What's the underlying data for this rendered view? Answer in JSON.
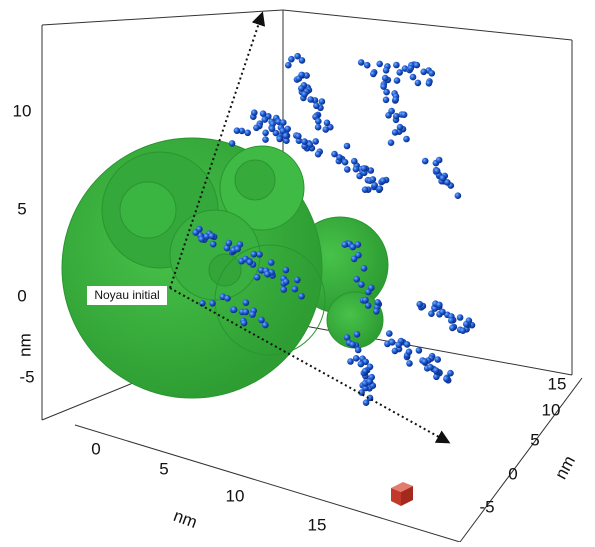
{
  "axes": {
    "z": {
      "ticks": [
        10,
        5,
        0,
        -5
      ],
      "label": "nm"
    },
    "x": {
      "ticks": [
        0,
        5,
        10,
        15
      ],
      "label": "nm"
    },
    "y": {
      "ticks": [
        15,
        10,
        5,
        0,
        -5
      ],
      "label": "nm"
    }
  },
  "annotation": "Noyau initial"
}
